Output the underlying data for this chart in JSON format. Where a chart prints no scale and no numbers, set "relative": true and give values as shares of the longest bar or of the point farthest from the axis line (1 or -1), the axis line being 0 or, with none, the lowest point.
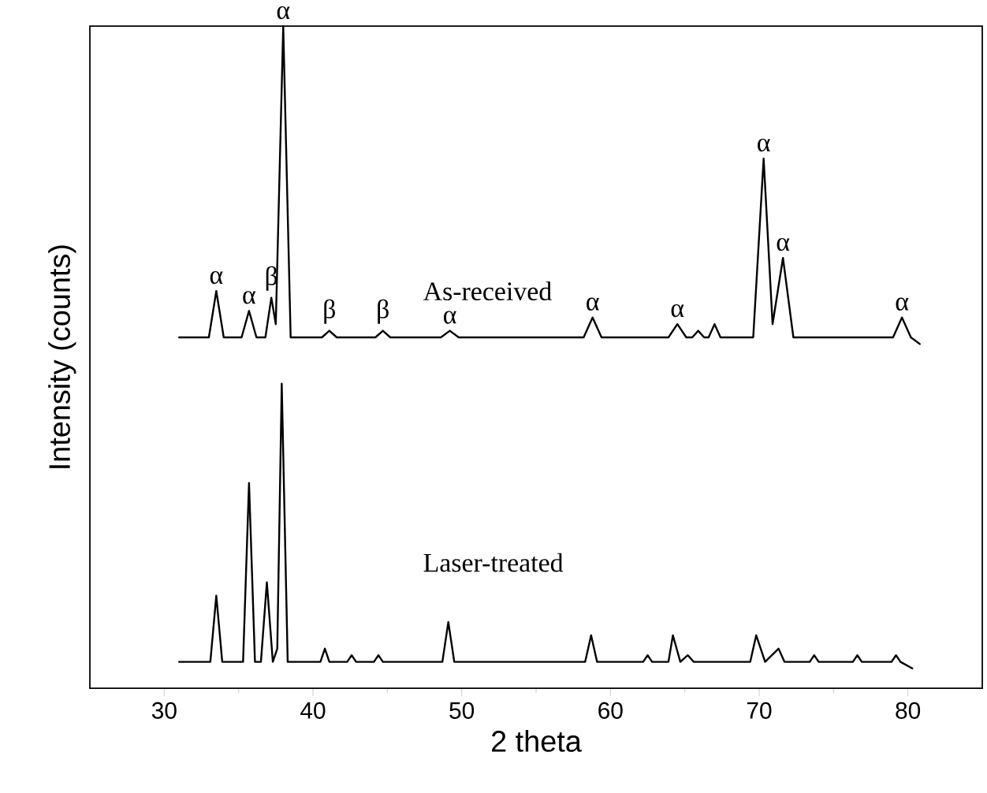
{
  "chart_data": {
    "type": "line",
    "relative": true,
    "xlabel": "2 theta",
    "ylabel": "Intensity (counts)",
    "xlim": [
      25,
      85
    ],
    "xticks": [
      30,
      40,
      50,
      60,
      70,
      80
    ],
    "marker": "none",
    "series": [
      {
        "name": "As-received",
        "color": "#000000",
        "x": [
          31,
          33.0,
          33.5,
          34.0,
          35.2,
          35.7,
          36.2,
          36.8,
          37.2,
          37.5,
          38.0,
          38.5,
          40.6,
          41.1,
          41.6,
          44.2,
          44.7,
          45.2,
          48.6,
          49.2,
          49.8,
          58.2,
          58.8,
          59.4,
          63.9,
          64.5,
          65.1,
          65.5,
          65.9,
          66.3,
          66.6,
          67.0,
          67.4,
          69.6,
          70.3,
          70.9,
          71.6,
          72.3,
          79.0,
          79.6,
          80.2,
          80.8
        ],
        "values": [
          0.53,
          0.53,
          0.6,
          0.53,
          0.53,
          0.57,
          0.53,
          0.53,
          0.59,
          0.55,
          1.0,
          0.53,
          0.53,
          0.54,
          0.53,
          0.53,
          0.54,
          0.53,
          0.53,
          0.54,
          0.53,
          0.53,
          0.56,
          0.53,
          0.53,
          0.55,
          0.53,
          0.53,
          0.54,
          0.53,
          0.53,
          0.55,
          0.53,
          0.53,
          0.8,
          0.55,
          0.65,
          0.53,
          0.53,
          0.56,
          0.53,
          0.52
        ]
      },
      {
        "name": "Laser-treated",
        "color": "#000000",
        "x": [
          31,
          33.1,
          33.5,
          33.9,
          35.3,
          35.7,
          36.1,
          36.5,
          36.9,
          37.3,
          37.6,
          37.9,
          38.3,
          40.5,
          40.8,
          41.1,
          42.3,
          42.6,
          42.9,
          44.1,
          44.4,
          44.7,
          48.7,
          49.1,
          49.5,
          58.3,
          58.7,
          59.1,
          62.2,
          62.5,
          62.8,
          63.9,
          64.2,
          64.7,
          65.2,
          65.6,
          69.4,
          69.8,
          70.4,
          71.3,
          71.7,
          73.4,
          73.7,
          74.0,
          76.3,
          76.6,
          76.9,
          78.9,
          79.2,
          79.5,
          80.3
        ],
        "values": [
          0.04,
          0.04,
          0.14,
          0.04,
          0.04,
          0.31,
          0.04,
          0.04,
          0.16,
          0.04,
          0.06,
          0.46,
          0.04,
          0.04,
          0.06,
          0.04,
          0.04,
          0.05,
          0.04,
          0.04,
          0.05,
          0.04,
          0.04,
          0.1,
          0.04,
          0.04,
          0.08,
          0.04,
          0.04,
          0.05,
          0.04,
          0.04,
          0.08,
          0.04,
          0.05,
          0.04,
          0.04,
          0.08,
          0.04,
          0.06,
          0.04,
          0.04,
          0.05,
          0.04,
          0.04,
          0.05,
          0.04,
          0.04,
          0.05,
          0.04,
          0.03
        ]
      }
    ],
    "annotations": [
      {
        "text": "α",
        "x": 33.5,
        "y": 0.6
      },
      {
        "text": "α",
        "x": 35.7,
        "y": 0.57
      },
      {
        "text": "β",
        "x": 37.2,
        "y": 0.59
      },
      {
        "text": "α",
        "x": 38.0,
        "y": 1.0
      },
      {
        "text": "β",
        "x": 41.1,
        "y": 0.54
      },
      {
        "text": "β",
        "x": 44.7,
        "y": 0.54
      },
      {
        "text": "α",
        "x": 49.2,
        "y": 0.54
      },
      {
        "text": "α",
        "x": 58.8,
        "y": 0.56
      },
      {
        "text": "α",
        "x": 64.5,
        "y": 0.55
      },
      {
        "text": "α",
        "x": 70.3,
        "y": 0.8
      },
      {
        "text": "α",
        "x": 71.6,
        "y": 0.65
      },
      {
        "text": "α",
        "x": 79.6,
        "y": 0.56
      }
    ]
  }
}
